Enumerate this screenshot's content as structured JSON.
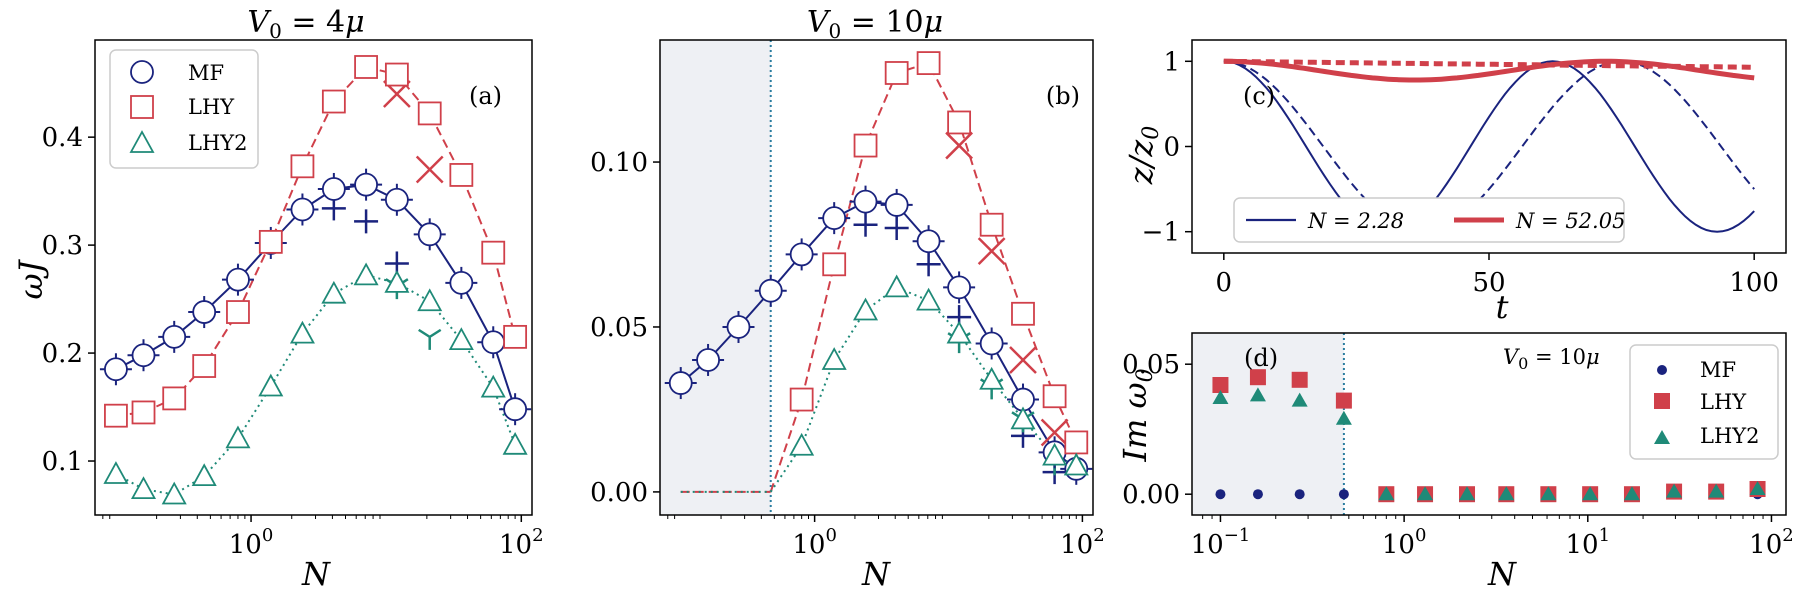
{
  "colors": {
    "mf": "#1a237e",
    "lhy": "#d0404a",
    "lhy2": "#1f8a78",
    "shade": "#eef0f4",
    "vline": "#2a7da0"
  },
  "chart_data": [
    {
      "id": "a",
      "type": "line-scatter",
      "panel_label": "(a)",
      "title": "V0 = 4μ",
      "xlabel": "N",
      "ylabel": "ωJ",
      "xscale": "log",
      "xlim": [
        0.07,
        120
      ],
      "ylim": [
        0.05,
        0.49
      ],
      "yticks": [
        0.1,
        0.2,
        0.3,
        0.4
      ],
      "ytick_labels": [
        "0.1",
        "0.2",
        "0.3",
        "0.4"
      ],
      "xticks": [
        1,
        100
      ],
      "xtick_labels": [
        "10^0",
        "10^2"
      ],
      "legend": [
        "MF",
        "LHY",
        "LHY2"
      ],
      "series": [
        {
          "name": "MF",
          "style": "solid",
          "x": [
            0.1,
            0.16,
            0.27,
            0.45,
            0.8,
            1.4,
            2.4,
            4.1,
            7.1,
            12,
            21,
            36,
            62,
            90
          ],
          "y": [
            0.185,
            0.198,
            0.215,
            0.238,
            0.268,
            0.302,
            0.333,
            0.352,
            0.356,
            0.342,
            0.31,
            0.265,
            0.21,
            0.148
          ]
        },
        {
          "name": "LHY",
          "style": "dashed",
          "x": [
            0.1,
            0.16,
            0.27,
            0.45,
            0.8,
            1.4,
            2.4,
            4.1,
            7.1,
            12,
            21,
            36,
            62,
            90
          ],
          "y": [
            0.142,
            0.145,
            0.158,
            0.188,
            0.238,
            0.303,
            0.373,
            0.433,
            0.465,
            0.458,
            0.422,
            0.365,
            0.293,
            0.215
          ]
        },
        {
          "name": "LHY2",
          "style": "dotted",
          "x": [
            0.1,
            0.16,
            0.27,
            0.45,
            0.8,
            1.4,
            2.4,
            4.1,
            7.1,
            12,
            21,
            36,
            62,
            90
          ],
          "y": [
            0.088,
            0.074,
            0.069,
            0.086,
            0.121,
            0.169,
            0.218,
            0.255,
            0.272,
            0.265,
            0.248,
            0.212,
            0.168,
            0.115
          ]
        }
      ],
      "crosses": [
        {
          "series": "MF",
          "x": [
            4.1,
            7.1,
            12
          ],
          "y": [
            0.334,
            0.322,
            0.283
          ]
        },
        {
          "series": "LHY",
          "x": [
            12,
            21
          ],
          "y": [
            0.44,
            0.37
          ]
        },
        {
          "series": "LHY2",
          "x": [
            12,
            21
          ],
          "y": [
            0.262,
            0.215
          ]
        }
      ]
    },
    {
      "id": "b",
      "type": "line-scatter",
      "panel_label": "(b)",
      "title": "V0 = 10μ",
      "xlabel": "N",
      "ylabel": "",
      "xscale": "log",
      "xlim": [
        0.07,
        120
      ],
      "ylim": [
        -0.007,
        0.137
      ],
      "yticks": [
        0.0,
        0.05,
        0.1
      ],
      "ytick_labels": [
        "0.00",
        "0.05",
        "0.10"
      ],
      "xticks": [
        1,
        100
      ],
      "xtick_labels": [
        "10^0",
        "10^2"
      ],
      "shaded_until": 0.47,
      "series": [
        {
          "name": "MF",
          "style": "solid",
          "x": [
            0.1,
            0.16,
            0.27,
            0.47,
            0.8,
            1.4,
            2.4,
            4.1,
            7.1,
            12,
            21,
            36,
            62,
            90
          ],
          "y": [
            0.033,
            0.04,
            0.05,
            0.061,
            0.072,
            0.083,
            0.088,
            0.087,
            0.076,
            0.062,
            0.045,
            0.028,
            0.012,
            0.007
          ]
        },
        {
          "name": "LHY",
          "style": "dashed",
          "x": [
            0.8,
            1.4,
            2.4,
            4.1,
            7.1,
            12,
            21,
            36,
            62,
            90
          ],
          "y": [
            0.028,
            0.069,
            0.105,
            0.127,
            0.13,
            0.112,
            0.081,
            0.054,
            0.029,
            0.015
          ]
        },
        {
          "name": "LHY2",
          "style": "dotted",
          "x": [
            0.8,
            1.4,
            2.4,
            4.1,
            7.1,
            12,
            21,
            36,
            62,
            90
          ],
          "y": [
            0.014,
            0.04,
            0.055,
            0.062,
            0.058,
            0.048,
            0.034,
            0.022,
            0.011,
            0.008
          ]
        }
      ],
      "flat_lines": {
        "x": [
          0.1,
          0.47
        ],
        "y": [
          0.0,
          0.0
        ]
      },
      "crosses": [
        {
          "series": "MF",
          "x": [
            2.4,
            4.1,
            7.1,
            12,
            36,
            62
          ],
          "y": [
            0.081,
            0.08,
            0.069,
            0.053,
            0.017,
            0.006
          ]
        },
        {
          "series": "LHY",
          "x": [
            12,
            21,
            36,
            62
          ],
          "y": [
            0.105,
            0.073,
            0.04,
            0.018
          ]
        },
        {
          "series": "LHY2",
          "x": [
            12,
            21,
            36,
            62
          ],
          "y": [
            0.046,
            0.032,
            0.022,
            0.009
          ]
        }
      ]
    },
    {
      "id": "c",
      "type": "line",
      "panel_label": "(c)",
      "xlabel": "t",
      "ylabel": "z/z0",
      "xlim": [
        -6,
        106
      ],
      "ylim": [
        -1.25,
        1.25
      ],
      "xticks": [
        0,
        50,
        100
      ],
      "xtick_labels": [
        "0",
        "50",
        "100"
      ],
      "yticks": [
        -1,
        0,
        1
      ],
      "ytick_labels": [
        "−1",
        "0",
        "1"
      ],
      "legend": [
        "N = 2.28",
        "N = 52.05"
      ],
      "series": [
        {
          "name": "N = 2.28 (solid)",
          "color": "mf",
          "period": 62,
          "amplitude": 1
        },
        {
          "name": "N = 2.28 (dashed)",
          "color": "mf",
          "period": 75,
          "amplitude": 1
        },
        {
          "name": "N = 52.05 (solid)",
          "color": "lhy",
          "period": 72,
          "min": 0.78
        },
        {
          "name": "N = 52.05 (dashed)",
          "color": "lhy",
          "min": 0.93
        }
      ]
    },
    {
      "id": "d",
      "type": "scatter",
      "panel_label": "(d)",
      "annotation": "V0 = 10μ",
      "xlabel": "N",
      "ylabel": "Im ω0",
      "xscale": "log",
      "xlim": [
        0.07,
        120
      ],
      "ylim": [
        -0.008,
        0.062
      ],
      "yticks": [
        0.0,
        0.05
      ],
      "ytick_labels": [
        "0.00",
        "0.05"
      ],
      "xticks": [
        0.1,
        1,
        10,
        100
      ],
      "xtick_labels": [
        "10^-1",
        "10^0",
        "10^1",
        "10^2"
      ],
      "shaded_until": 0.47,
      "legend": [
        "MF",
        "LHY",
        "LHY2"
      ],
      "series": [
        {
          "name": "MF",
          "marker": "circle",
          "x": [
            0.1,
            0.16,
            0.27,
            0.47,
            0.8,
            1.3,
            2.2,
            3.6,
            6.1,
            10.3,
            17.4,
            29.5,
            50,
            84
          ],
          "y": [
            0,
            0,
            0,
            0,
            0,
            0,
            0,
            0,
            0,
            0,
            0,
            0,
            0,
            0
          ]
        },
        {
          "name": "LHY",
          "marker": "square",
          "x": [
            0.1,
            0.16,
            0.27,
            0.47,
            0.8,
            1.3,
            2.2,
            3.6,
            6.1,
            10.3,
            17.4,
            29.5,
            50,
            84
          ],
          "y": [
            0.042,
            0.045,
            0.044,
            0.036,
            0,
            0,
            0,
            0,
            0,
            0,
            0,
            0.001,
            0.001,
            0.002
          ]
        },
        {
          "name": "LHY2",
          "marker": "triangle",
          "x": [
            0.1,
            0.16,
            0.27,
            0.47,
            0.8,
            1.3,
            2.2,
            3.6,
            6.1,
            10.3,
            17.4,
            29.5,
            50,
            84
          ],
          "y": [
            0.037,
            0.038,
            0.036,
            0.029,
            0,
            0,
            0,
            0,
            0,
            0,
            0,
            0.001,
            0.001,
            0.002
          ]
        }
      ]
    }
  ]
}
